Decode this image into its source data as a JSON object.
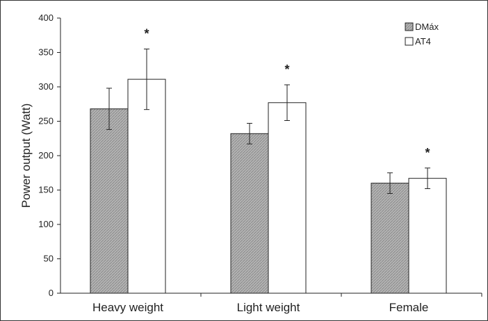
{
  "chart_data": {
    "type": "bar",
    "categories": [
      "Heavy weight",
      "Light weight",
      "Female"
    ],
    "series": [
      {
        "name": "DMáx",
        "values": [
          268,
          232,
          160
        ],
        "error": [
          30,
          15,
          15
        ],
        "color": "#a9a9a9",
        "pattern": "hatched"
      },
      {
        "name": "AT4",
        "values": [
          311,
          277,
          167
        ],
        "error": [
          44,
          26,
          15
        ],
        "color": "#ffffff",
        "pattern": "none"
      }
    ],
    "significance_markers": [
      "*",
      "*",
      "*"
    ],
    "title": "",
    "xlabel": "",
    "ylabel": "Power output (Watt)",
    "ylim": [
      0,
      400
    ],
    "yticks": [
      0,
      50,
      100,
      150,
      200,
      250,
      300,
      350,
      400
    ],
    "grid": false,
    "legend_position": "top-right"
  }
}
